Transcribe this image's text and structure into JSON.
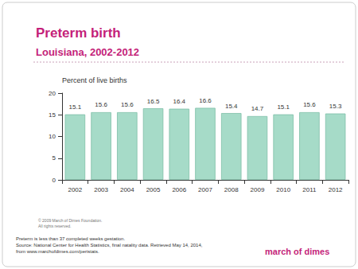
{
  "chart_data": {
    "type": "bar",
    "title": "Preterm birth",
    "subtitle": "Louisiana, 2002-2012",
    "ylabel": "Percent of live births",
    "categories": [
      "2002",
      "2003",
      "2004",
      "2005",
      "2006",
      "2007",
      "2008",
      "2009",
      "2010",
      "2011",
      "2012"
    ],
    "values": [
      15.1,
      15.6,
      15.6,
      16.5,
      16.4,
      16.6,
      15.4,
      14.7,
      15.1,
      15.6,
      15.3
    ],
    "color": "#a6dbc8",
    "ylim": [
      0,
      20
    ],
    "yticks": [
      0,
      5,
      10,
      15,
      20
    ],
    "grid": false,
    "data_labels": true,
    "annotations": [
      "© 2009 March of Dimes Foundation.",
      "All rights reserved.",
      "Preterm is less than 37 completed weeks gestation.",
      "Source: National Center for Health Statistics, final natality data. Retrieved May 14, 2014,",
      "from www.marchofdimes.com/peristats.",
      "march of dimes"
    ]
  }
}
